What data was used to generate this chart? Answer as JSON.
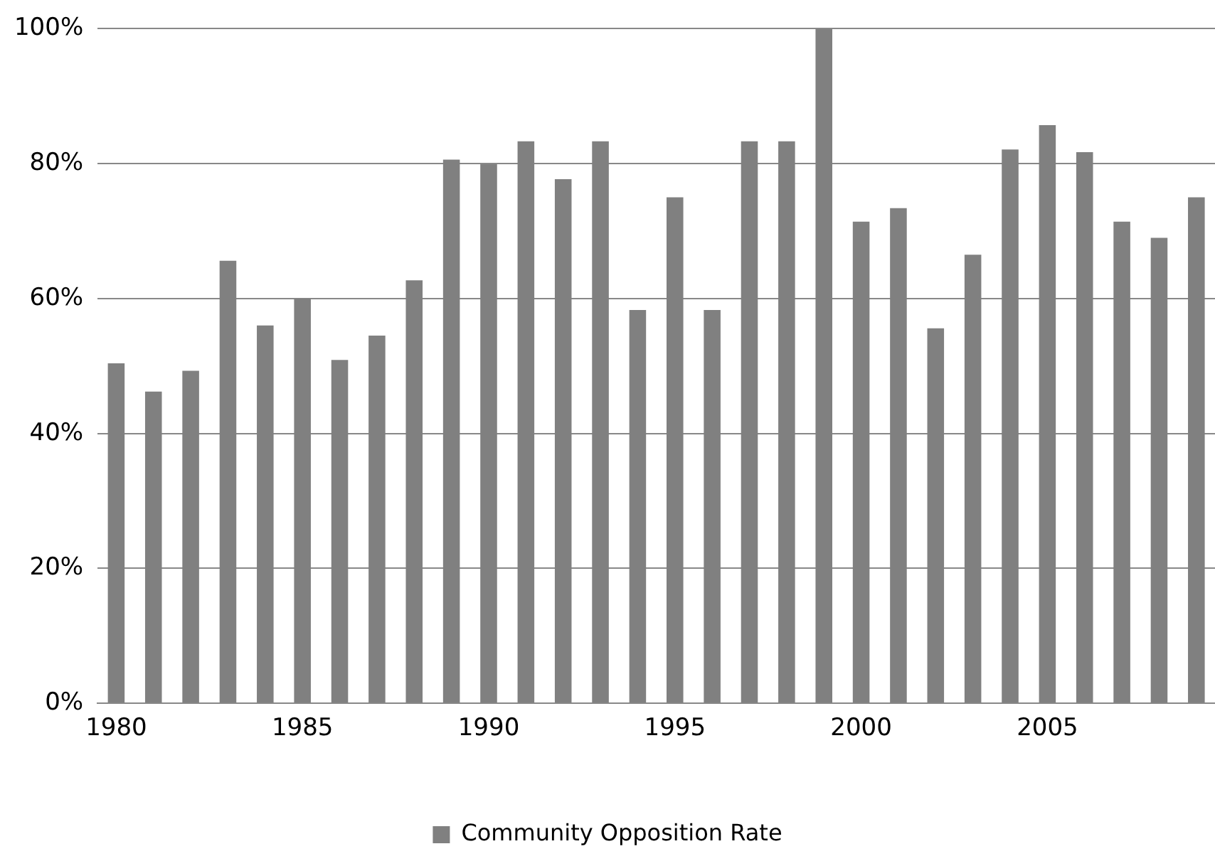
{
  "chart_data": {
    "type": "bar",
    "categories": [
      "1980",
      null,
      null,
      null,
      null,
      "1985",
      null,
      null,
      null,
      null,
      "1990",
      null,
      null,
      null,
      null,
      "1995",
      null,
      null,
      null,
      null,
      "2000",
      null,
      null,
      null,
      null,
      "2005",
      null,
      null,
      null,
      null
    ],
    "series": [
      {
        "name": "Community Opposition Rate",
        "color": "#808080",
        "values": [
          50.4,
          46.2,
          49.3,
          65.6,
          56,
          60,
          50.9,
          54.5,
          62.7,
          80.6,
          79.9,
          83.3,
          77.7,
          83.3,
          58.3,
          75,
          58.3,
          83.3,
          83.3,
          100,
          71.4,
          73.4,
          55.6,
          66.5,
          82.1,
          85.7,
          81.7,
          71.4,
          69,
          75
        ]
      }
    ],
    "ylim": [
      0,
      100
    ],
    "yticks": [
      {
        "value": 0,
        "label": "0%"
      },
      {
        "value": 20,
        "label": "20%"
      },
      {
        "value": 40,
        "label": "40%"
      },
      {
        "value": 60,
        "label": "60%"
      },
      {
        "value": 80,
        "label": "80%"
      },
      {
        "value": 100,
        "label": "100%"
      }
    ],
    "grid": "y",
    "legend": "bottom"
  }
}
